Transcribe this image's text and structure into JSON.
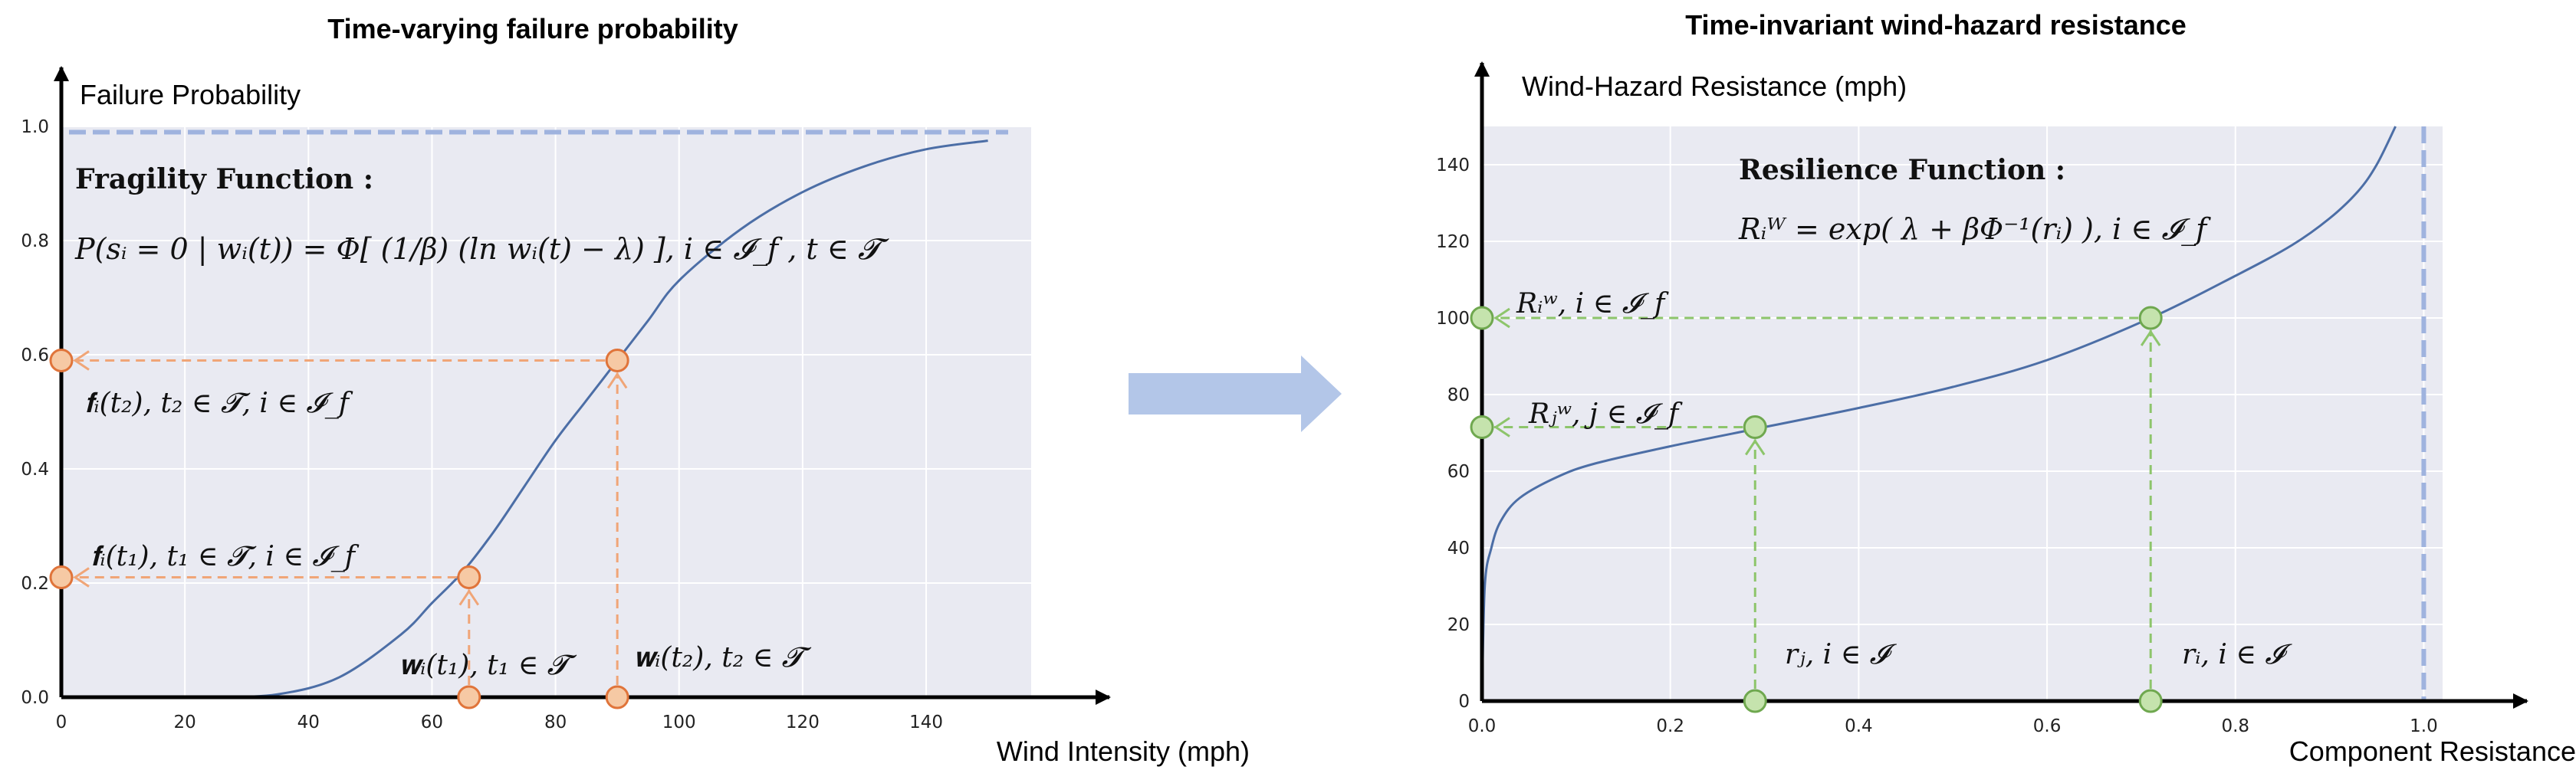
{
  "chart_data": [
    {
      "type": "line",
      "title": "Time-varying failure probability",
      "xlabel": "Wind Intensity (mph)",
      "ylabel": "Failure Probability",
      "xlim": [
        0,
        157
      ],
      "ylim": [
        0,
        1.0
      ],
      "xticks": [
        "0",
        "20",
        "40",
        "60",
        "80",
        "100",
        "120",
        "140"
      ],
      "yticks": [
        "0.0",
        "0.2",
        "0.4",
        "0.6",
        "0.8",
        "1.0"
      ],
      "grid": true,
      "curve": {
        "x": [
          25,
          35,
          45,
          55,
          60,
          65,
          70,
          75,
          80,
          85,
          90,
          95,
          100,
          110,
          120,
          130,
          140,
          150
        ],
        "y": [
          0.0,
          0.005,
          0.035,
          0.11,
          0.165,
          0.22,
          0.29,
          0.37,
          0.45,
          0.52,
          0.59,
          0.66,
          0.73,
          0.82,
          0.885,
          0.93,
          0.96,
          0.975
        ]
      },
      "reference_line": {
        "y": 0.99,
        "style": "dashed"
      },
      "marked_points": [
        {
          "x": 66,
          "y": 0.21
        },
        {
          "x": 90,
          "y": 0.59
        }
      ],
      "function_title": "Fragility Function :",
      "equation": "P(sᵢ = 0 | wᵢ(t)) = Φ[ (1/β) (ln wᵢ(t) − λ) ], i ∈ 𝓘_f , t ∈ 𝓣",
      "annotations": [
        "𝐟ᵢ(t₂), t₂ ∈ 𝓣, i ∈ 𝓘_f",
        "𝐟ᵢ(t₁), t₁ ∈ 𝓣, i ∈ 𝓘_f",
        "𝐰ᵢ(t₁), t₁ ∈ 𝓣",
        "𝐰ᵢ(t₂), t₂ ∈ 𝓣"
      ]
    },
    {
      "type": "line",
      "title": "Time-invariant wind-hazard resistance",
      "xlabel": "Component Resistance",
      "ylabel": "Wind-Hazard Resistance (mph)",
      "xlim": [
        0,
        1.02
      ],
      "ylim": [
        0,
        150
      ],
      "xticks": [
        "0.0",
        "0.2",
        "0.4",
        "0.6",
        "0.8",
        "1.0"
      ],
      "yticks": [
        "0",
        "20",
        "40",
        "60",
        "80",
        "100",
        "120",
        "140"
      ],
      "grid": true,
      "curve": {
        "x": [
          0.0,
          0.003,
          0.01,
          0.02,
          0.04,
          0.08,
          0.12,
          0.2,
          0.3,
          0.4,
          0.5,
          0.6,
          0.71,
          0.8,
          0.86,
          0.9,
          0.93,
          0.95,
          0.97
        ],
        "y": [
          0,
          30,
          40,
          47,
          53,
          58.5,
          62,
          66.5,
          71.5,
          76.5,
          82,
          89,
          100,
          111,
          119,
          126,
          133,
          140,
          150
        ]
      },
      "reference_line": {
        "x": 1.0,
        "style": "dashed"
      },
      "marked_points": [
        {
          "x": 0.29,
          "y": 71.5
        },
        {
          "x": 0.71,
          "y": 100
        }
      ],
      "function_title": "Resilience Function :",
      "equation": "Rᵢᵂ = exp( λ + βΦ⁻¹(rᵢ) ), i ∈ 𝓘_f",
      "annotations": [
        "Rᵢʷ, i ∈ 𝓘_f",
        "Rⱼʷ, j ∈ 𝓘_f",
        "rⱼ, i ∈ 𝓘",
        "rᵢ, i ∈ 𝓘"
      ]
    }
  ],
  "colors": {
    "plot_bg": "#e9eaf2",
    "curve": "#4c6ea6",
    "ref_line": "#9fb3de",
    "orange_fill": "#f6c9a4",
    "orange_stroke": "#e0743a",
    "orange_dash": "#f0a577",
    "green_fill": "#c5e3ad",
    "green_stroke": "#6fa84f",
    "green_dash": "#8dc56b",
    "arrow": "#b3c6e8"
  }
}
